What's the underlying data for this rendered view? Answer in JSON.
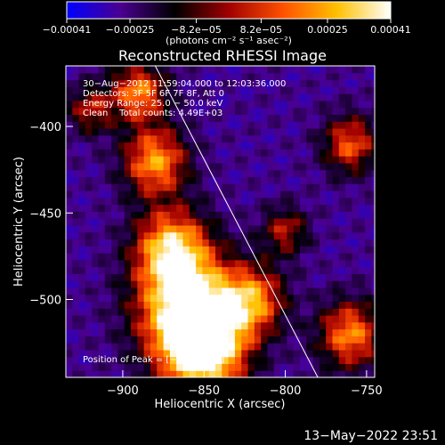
{
  "chart_data": {
    "type": "heatmap",
    "title": "Reconstructed RHESSI Image",
    "xlabel": "Heliocentric X (arcsec)",
    "ylabel": "Heliocentric Y (arcsec)",
    "xlim": [
      -935,
      -745
    ],
    "ylim": [
      -545,
      -365
    ],
    "x_ticks": [
      -900,
      -850,
      -800,
      -750
    ],
    "x_tick_labels": [
      "−900",
      "−850",
      "−800",
      "−750"
    ],
    "y_ticks": [
      -400,
      -450,
      -500
    ],
    "y_tick_labels": [
      "−400",
      "−450",
      "−500"
    ],
    "colorbar": {
      "range": [
        -0.00041,
        0.00041
      ],
      "ticks": [
        -0.00041,
        -0.00025,
        -8.2e-05,
        8.2e-05,
        0.00025,
        0.00041
      ],
      "tick_labels": [
        "−0.00041",
        "−0.00025",
        "−8.2e−05",
        "8.2e−05",
        "0.00025",
        "0.00041"
      ],
      "unit_label": "(photons cm⁻² s⁻¹ asec⁻²)",
      "colormap": [
        "#0000ff",
        "#4a0090",
        "#000000",
        "#a00000",
        "#ff5000",
        "#ffc000",
        "#ffffff"
      ]
    },
    "info_lines": [
      "30−Aug−2012 11:59:04.000 to 12:03:36.000",
      "Detectors: 3F 5F 6F 7F 8F, Att 0",
      "Energy Range: 25.0 − 50.0 keV",
      "Clean    Total counts: 4.49E+03"
    ],
    "peak_label": "Position of Peak = [−848,−538]",
    "limb_line": {
      "from": [
        -880,
        -365
      ],
      "to": [
        -780,
        -545
      ]
    },
    "bright_regions": [
      {
        "x": -860,
        "y": -505,
        "sigma": 22,
        "intensity": 1.0
      },
      {
        "x": -850,
        "y": -530,
        "sigma": 18,
        "intensity": 0.95
      },
      {
        "x": -870,
        "y": -470,
        "sigma": 16,
        "intensity": 0.8
      },
      {
        "x": -880,
        "y": -420,
        "sigma": 14,
        "intensity": 0.75
      },
      {
        "x": -890,
        "y": -380,
        "sigma": 12,
        "intensity": 0.7
      },
      {
        "x": -820,
        "y": -500,
        "sigma": 14,
        "intensity": 0.65
      },
      {
        "x": -760,
        "y": -520,
        "sigma": 14,
        "intensity": 0.7
      },
      {
        "x": -760,
        "y": -410,
        "sigma": 12,
        "intensity": 0.6
      },
      {
        "x": -800,
        "y": -460,
        "sigma": 10,
        "intensity": 0.45
      },
      {
        "x": -920,
        "y": -390,
        "sigma": 10,
        "intensity": 0.45
      }
    ]
  },
  "footer": {
    "timestamp": "13−May−2022 23:51"
  }
}
